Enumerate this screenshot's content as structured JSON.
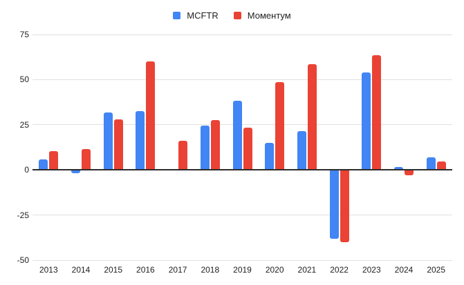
{
  "chart_data": {
    "type": "bar",
    "title": "",
    "xlabel": "",
    "ylabel": "",
    "categories": [
      "2013",
      "2014",
      "2015",
      "2016",
      "2017",
      "2018",
      "2019",
      "2020",
      "2021",
      "2022",
      "2023",
      "2024",
      "2025"
    ],
    "series": [
      {
        "name": "MCFTR",
        "slug": "mcftr",
        "color": "#4285F4",
        "values": [
          6,
          -2,
          32,
          32.5,
          0,
          24.5,
          38.5,
          15,
          21.5,
          -38,
          54,
          1.5,
          7
        ]
      },
      {
        "name": "Моментум",
        "slug": "momentum",
        "color": "#EA4335",
        "values": [
          10.5,
          11.5,
          28,
          60,
          16,
          27.5,
          23.5,
          48.5,
          58.5,
          -40,
          63.5,
          -3,
          4.5
        ]
      }
    ],
    "ylim": [
      -50,
      75
    ],
    "yticks": [
      75,
      50,
      25,
      0,
      -25,
      -50
    ],
    "grid": true,
    "legend_position": "top",
    "colors": {
      "gridline": "#e0e0e0",
      "zero_line": "#2b2b2b",
      "axis_text": "#1f1f1f",
      "background": "#ffffff"
    }
  }
}
